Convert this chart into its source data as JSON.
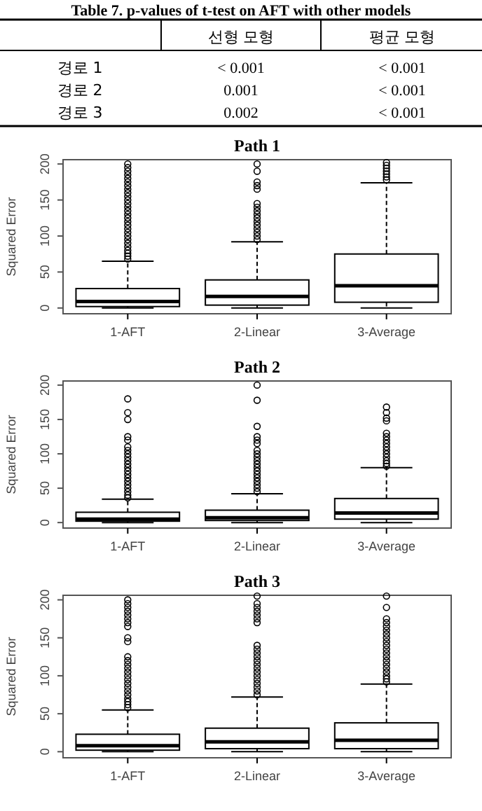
{
  "chart_data": [
    {
      "type": "other",
      "title": "Table 7. p-values of t-test on AFT with other models",
      "annotations": [
        "선형 모형",
        "평균 모형",
        "경로 1",
        "< 0.001",
        "< 0.001",
        "경로 2",
        "0.001",
        "< 0.001",
        "경로 3",
        "0.002",
        "< 0.001"
      ]
    },
    {
      "type": "box",
      "title": "Path 1",
      "ylabel": "Squared Error",
      "categories": [
        "1-AFT",
        "2-Linear",
        "3-Average"
      ],
      "ylim": [
        -8,
        206
      ],
      "yticks": [
        0,
        50,
        100,
        150,
        200
      ],
      "boxes": [
        {
          "low": 0,
          "q1": 2,
          "median": 9,
          "q3": 27,
          "high": 65,
          "outliers": [
            68,
            72,
            76,
            80,
            85,
            90,
            95,
            100,
            105,
            110,
            115,
            120,
            125,
            130,
            135,
            140,
            145,
            150,
            155,
            160,
            165,
            170,
            175,
            180,
            185,
            190,
            195,
            200
          ]
        },
        {
          "low": 0,
          "q1": 4,
          "median": 16,
          "q3": 39,
          "high": 92,
          "outliers": [
            95,
            100,
            105,
            110,
            115,
            120,
            125,
            130,
            135,
            140,
            145,
            165,
            170,
            175,
            190,
            200
          ]
        },
        {
          "low": 0,
          "q1": 8,
          "median": 31,
          "q3": 75,
          "high": 174,
          "outliers": [
            178,
            182,
            186,
            190,
            194,
            198,
            202
          ]
        }
      ]
    },
    {
      "type": "box",
      "title": "Path 2",
      "ylabel": "Squared Error",
      "categories": [
        "1-AFT",
        "2-Linear",
        "3-Average"
      ],
      "ylim": [
        -8,
        206
      ],
      "yticks": [
        0,
        50,
        100,
        150,
        200
      ],
      "boxes": [
        {
          "low": 0,
          "q1": 2,
          "median": 5,
          "q3": 15,
          "high": 34,
          "outliers": [
            36,
            40,
            45,
            50,
            55,
            60,
            65,
            70,
            75,
            80,
            85,
            90,
            95,
            100,
            105,
            110,
            120,
            125,
            150,
            160,
            180
          ]
        },
        {
          "low": 0,
          "q1": 3,
          "median": 7,
          "q3": 18,
          "high": 42,
          "outliers": [
            45,
            50,
            55,
            60,
            65,
            70,
            75,
            80,
            85,
            90,
            95,
            100,
            105,
            115,
            120,
            125,
            140,
            178,
            200
          ]
        },
        {
          "low": 0,
          "q1": 5,
          "median": 14,
          "q3": 35,
          "high": 80,
          "outliers": [
            82,
            86,
            90,
            95,
            100,
            105,
            110,
            115,
            120,
            125,
            130,
            148,
            152,
            160,
            168
          ]
        }
      ]
    },
    {
      "type": "box",
      "title": "Path 3",
      "ylabel": "Squared Error",
      "categories": [
        "1-AFT",
        "2-Linear",
        "3-Average"
      ],
      "ylim": [
        -8,
        206
      ],
      "yticks": [
        0,
        50,
        100,
        150,
        200
      ],
      "boxes": [
        {
          "low": 0,
          "q1": 2,
          "median": 8,
          "q3": 23,
          "high": 55,
          "outliers": [
            58,
            62,
            66,
            70,
            75,
            80,
            85,
            90,
            95,
            100,
            105,
            110,
            115,
            120,
            125,
            145,
            150,
            165,
            170,
            175,
            180,
            185,
            190,
            195,
            200
          ]
        },
        {
          "low": 0,
          "q1": 4,
          "median": 13,
          "q3": 31,
          "high": 72,
          "outliers": [
            75,
            80,
            85,
            90,
            95,
            100,
            105,
            110,
            115,
            120,
            125,
            130,
            135,
            140,
            170,
            175,
            180,
            185,
            190,
            195,
            205
          ]
        },
        {
          "low": 0,
          "q1": 4,
          "median": 15,
          "q3": 38,
          "high": 89,
          "outliers": [
            92,
            96,
            100,
            105,
            110,
            115,
            120,
            125,
            130,
            135,
            140,
            145,
            150,
            155,
            160,
            165,
            170,
            175,
            190,
            205
          ]
        }
      ]
    }
  ]
}
